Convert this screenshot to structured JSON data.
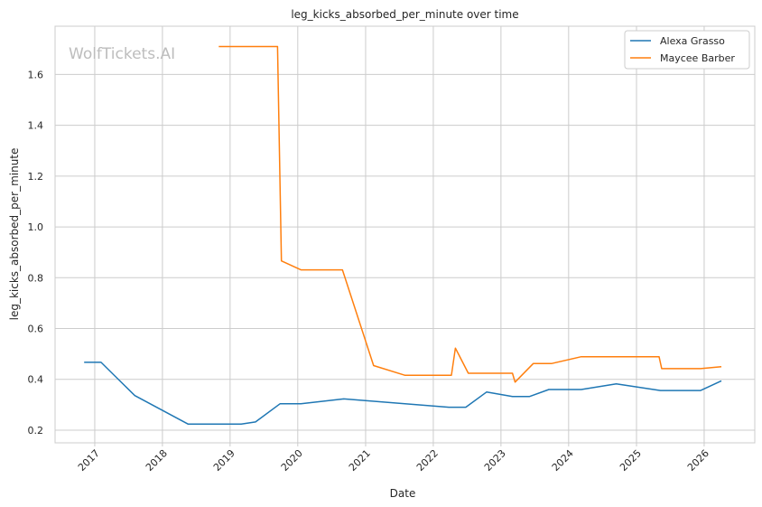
{
  "chart_data": {
    "type": "line",
    "title": "leg_kicks_absorbed_per_minute over time",
    "xlabel": "Date",
    "ylabel": "leg_kicks_absorbed_per_minute",
    "watermark": "WolfTickets.AI",
    "xlim": [
      "2016-06-01",
      "2026-10-01"
    ],
    "ylim": [
      0.15,
      1.79
    ],
    "x_ticks": [
      "2017-01-01",
      "2018-01-01",
      "2019-01-01",
      "2020-01-01",
      "2021-01-01",
      "2022-01-01",
      "2023-01-01",
      "2024-01-01",
      "2025-01-01",
      "2026-01-01"
    ],
    "x_tick_labels": [
      "2017",
      "2018",
      "2019",
      "2020",
      "2021",
      "2022",
      "2023",
      "2024",
      "2025",
      "2026"
    ],
    "y_ticks": [
      0.2,
      0.4,
      0.6,
      0.8,
      1.0,
      1.2,
      1.4,
      1.6
    ],
    "y_tick_labels": [
      "0.2",
      "0.4",
      "0.6",
      "0.8",
      "1.0",
      "1.2",
      "1.4",
      "1.6"
    ],
    "grid": true,
    "legend_position": "top-right",
    "series": [
      {
        "name": "Alexa Grasso",
        "color": "#1f77b4",
        "x": [
          "2016-11-05",
          "2017-02-04",
          "2017-08-05",
          "2018-05-19",
          "2019-03-02",
          "2019-05-18",
          "2019-09-28",
          "2020-01-18",
          "2020-09-05",
          "2022-03-26",
          "2022-06-25",
          "2022-10-15",
          "2023-03-04",
          "2023-06-03",
          "2023-09-16",
          "2024-03-09",
          "2024-09-14",
          "2025-05-10",
          "2025-12-13",
          "2026-04-04"
        ],
        "values": [
          0.467,
          0.467,
          0.336,
          0.224,
          0.224,
          0.232,
          0.304,
          0.304,
          0.323,
          0.29,
          0.29,
          0.35,
          0.332,
          0.332,
          0.36,
          0.36,
          0.382,
          0.356,
          0.356,
          0.394
        ]
      },
      {
        "name": "Maycee Barber",
        "color": "#ff7f0e",
        "x": [
          "2018-11-01",
          "2019-09-14",
          "2019-10-05",
          "2020-01-18",
          "2020-08-29",
          "2021-02-13",
          "2021-07-31",
          "2022-04-09",
          "2022-04-30",
          "2022-07-09",
          "2023-03-04",
          "2023-03-18",
          "2023-06-24",
          "2023-09-30",
          "2024-03-09",
          "2025-05-03",
          "2025-05-17",
          "2025-12-13",
          "2026-04-04"
        ],
        "values": [
          1.71,
          1.71,
          0.866,
          0.831,
          0.831,
          0.454,
          0.416,
          0.416,
          0.523,
          0.424,
          0.424,
          0.389,
          0.462,
          0.462,
          0.489,
          0.489,
          0.442,
          0.442,
          0.45
        ]
      }
    ]
  }
}
